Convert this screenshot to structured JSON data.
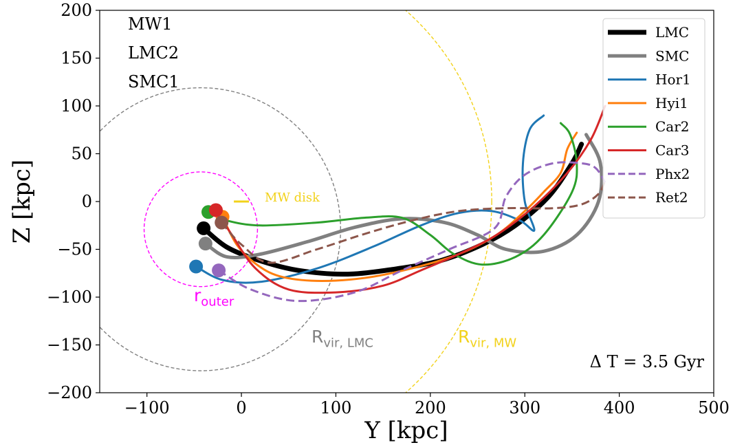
{
  "chart_data": {
    "type": "line",
    "xlabel": "Y [kpc]",
    "ylabel": "Z [kpc]",
    "xlim": [
      -150,
      500
    ],
    "ylim": [
      -200,
      200
    ],
    "xticks": [
      -100,
      0,
      100,
      200,
      300,
      400,
      500
    ],
    "yticks": [
      -200,
      -150,
      -100,
      -50,
      0,
      50,
      100,
      150,
      200
    ],
    "xtick_labels": [
      "−100",
      "0",
      "100",
      "200",
      "300",
      "400",
      "500"
    ],
    "ytick_labels": [
      "−200",
      "−150",
      "−100",
      "−50",
      "0",
      "50",
      "100",
      "150",
      "200"
    ],
    "grid": false,
    "legend_position": "top-right",
    "model_labels": [
      "MW1",
      "LMC2",
      "SMC1"
    ],
    "time_label": "Δ T = 3.5 Gyr",
    "annotations": {
      "mw_disk": {
        "text": "MW disk",
        "color": "#f2d21b",
        "segment": [
          [
            -8,
            0
          ],
          [
            8,
            0
          ]
        ]
      },
      "r_outer": {
        "text": "r",
        "sub": "outer",
        "color": "#ff00ff",
        "center": [
          -43,
          -29
        ],
        "radius": 60
      },
      "r_vir_lmc": {
        "text": "R",
        "sub": "vir, LMC",
        "color": "#808080",
        "center": [
          -43,
          -29
        ],
        "radius": 148
      },
      "r_vir_mw": {
        "text": "R",
        "sub": "vir, MW",
        "color": "#f2d21b",
        "center": [
          0,
          0
        ],
        "radius": 265
      }
    },
    "series": [
      {
        "name": "LMC",
        "color": "#000000",
        "width": 7,
        "dashed": false,
        "start": [
          -40,
          -28
        ],
        "points": [
          [
            -40,
            -28
          ],
          [
            -15,
            -48
          ],
          [
            20,
            -62
          ],
          [
            60,
            -72
          ],
          [
            110,
            -76
          ],
          [
            160,
            -71
          ],
          [
            210,
            -62
          ],
          [
            255,
            -45
          ],
          [
            290,
            -25
          ],
          [
            325,
            5
          ],
          [
            350,
            40
          ],
          [
            360,
            60
          ]
        ]
      },
      {
        "name": "SMC",
        "color": "#808080",
        "width": 5,
        "dashed": false,
        "start": [
          -38,
          -44
        ],
        "points": [
          [
            -38,
            -44
          ],
          [
            -15,
            -58
          ],
          [
            20,
            -55
          ],
          [
            70,
            -42
          ],
          [
            120,
            -27
          ],
          [
            170,
            -18
          ],
          [
            215,
            -22
          ],
          [
            250,
            -35
          ],
          [
            280,
            -50
          ],
          [
            320,
            -52
          ],
          [
            355,
            -35
          ],
          [
            378,
            0
          ],
          [
            380,
            40
          ],
          [
            365,
            70
          ]
        ]
      },
      {
        "name": "Hor1",
        "color": "#1f77b4",
        "width": 3,
        "dashed": false,
        "start": [
          -48,
          -68
        ],
        "points": [
          [
            -48,
            -68
          ],
          [
            -20,
            -82
          ],
          [
            20,
            -84
          ],
          [
            80,
            -70
          ],
          [
            140,
            -47
          ],
          [
            190,
            -25
          ],
          [
            230,
            -12
          ],
          [
            265,
            -10
          ],
          [
            295,
            -20
          ],
          [
            310,
            -30
          ],
          [
            300,
            0
          ],
          [
            298,
            40
          ],
          [
            305,
            75
          ],
          [
            320,
            90
          ]
        ]
      },
      {
        "name": "Hyi1",
        "color": "#ff7f0e",
        "width": 3,
        "dashed": false,
        "start": [
          -20,
          -16
        ],
        "points": [
          [
            -20,
            -16
          ],
          [
            -5,
            -45
          ],
          [
            15,
            -65
          ],
          [
            40,
            -78
          ],
          [
            80,
            -83
          ],
          [
            130,
            -80
          ],
          [
            180,
            -70
          ],
          [
            230,
            -55
          ],
          [
            270,
            -35
          ],
          [
            300,
            -10
          ],
          [
            320,
            10
          ],
          [
            338,
            30
          ],
          [
            345,
            55
          ],
          [
            355,
            72
          ]
        ]
      },
      {
        "name": "Car2",
        "color": "#2ca02c",
        "width": 3,
        "dashed": false,
        "start": [
          -35,
          -11
        ],
        "points": [
          [
            -35,
            -11
          ],
          [
            -15,
            -20
          ],
          [
            20,
            -25
          ],
          [
            80,
            -22
          ],
          [
            130,
            -17
          ],
          [
            170,
            -17
          ],
          [
            200,
            -35
          ],
          [
            225,
            -55
          ],
          [
            255,
            -66
          ],
          [
            290,
            -58
          ],
          [
            320,
            -35
          ],
          [
            350,
            10
          ],
          [
            355,
            40
          ],
          [
            348,
            70
          ],
          [
            338,
            82
          ]
        ]
      },
      {
        "name": "Car3",
        "color": "#d62728",
        "width": 3,
        "dashed": false,
        "start": [
          -27,
          -9
        ],
        "points": [
          [
            -27,
            -9
          ],
          [
            -10,
            -35
          ],
          [
            15,
            -70
          ],
          [
            50,
            -92
          ],
          [
            100,
            -95
          ],
          [
            150,
            -88
          ],
          [
            190,
            -72
          ],
          [
            230,
            -55
          ],
          [
            270,
            -35
          ],
          [
            310,
            -5
          ],
          [
            345,
            30
          ],
          [
            370,
            65
          ],
          [
            385,
            100
          ]
        ]
      },
      {
        "name": "Phx2",
        "color": "#9467bd",
        "width": 3,
        "dashed": true,
        "start": [
          -24,
          -72
        ],
        "points": [
          [
            -24,
            -72
          ],
          [
            10,
            -92
          ],
          [
            60,
            -104
          ],
          [
            120,
            -95
          ],
          [
            170,
            -72
          ],
          [
            220,
            -50
          ],
          [
            268,
            -28
          ],
          [
            280,
            5
          ],
          [
            300,
            28
          ],
          [
            330,
            40
          ],
          [
            360,
            40
          ],
          [
            375,
            35
          ],
          [
            385,
            20
          ]
        ]
      },
      {
        "name": "Ret2",
        "color": "#8c564b",
        "width": 3,
        "dashed": true,
        "start": [
          -21,
          -22
        ],
        "points": [
          [
            -21,
            -22
          ],
          [
            0,
            -45
          ],
          [
            30,
            -64
          ],
          [
            80,
            -50
          ],
          [
            130,
            -34
          ],
          [
            180,
            -20
          ],
          [
            230,
            -10
          ],
          [
            280,
            -7
          ],
          [
            330,
            -7
          ],
          [
            360,
            -3
          ],
          [
            378,
            8
          ],
          [
            385,
            22
          ]
        ]
      }
    ]
  }
}
